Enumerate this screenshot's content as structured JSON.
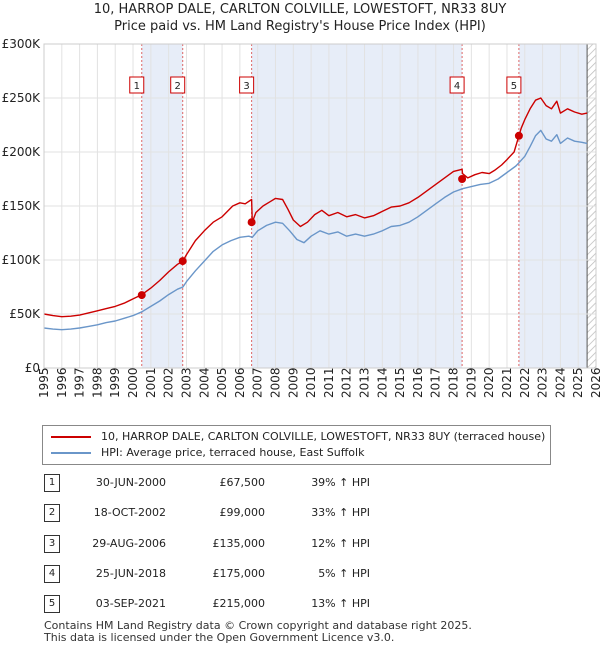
{
  "chart_data": {
    "type": "line",
    "title": "10, HARROP DALE, CARLTON COLVILLE, LOWESTOFT, NR33 8UY",
    "subtitle": "Price paid vs. HM Land Registry's House Price Index (HPI)",
    "xlim": [
      1995,
      2026
    ],
    "ylim": [
      0,
      300000
    ],
    "x_ticks": [
      1995,
      1996,
      1997,
      1998,
      1999,
      2000,
      2001,
      2002,
      2003,
      2004,
      2005,
      2006,
      2007,
      2008,
      2009,
      2010,
      2011,
      2012,
      2013,
      2014,
      2015,
      2016,
      2017,
      2018,
      2019,
      2020,
      2021,
      2022,
      2023,
      2024,
      2025,
      2026
    ],
    "y_ticks": [
      {
        "value": 0,
        "label": "£0"
      },
      {
        "value": 50000,
        "label": "£50K"
      },
      {
        "value": 100000,
        "label": "£100K"
      },
      {
        "value": 150000,
        "label": "£150K"
      },
      {
        "value": 200000,
        "label": "£200K"
      },
      {
        "value": 250000,
        "label": "£250K"
      },
      {
        "value": 300000,
        "label": "£300K"
      }
    ],
    "series": [
      {
        "name": "10, HARROP DALE, CARLTON COLVILLE, LOWESTOFT, NR33 8UY (terraced house)",
        "color": "#cc0000",
        "points": [
          [
            1995.0,
            50000
          ],
          [
            1995.5,
            48500
          ],
          [
            1996.0,
            47500
          ],
          [
            1996.5,
            48000
          ],
          [
            1997.0,
            49000
          ],
          [
            1997.5,
            51000
          ],
          [
            1998.0,
            53000
          ],
          [
            1998.5,
            55000
          ],
          [
            1999.0,
            57000
          ],
          [
            1999.5,
            60000
          ],
          [
            2000.0,
            64000
          ],
          [
            2000.5,
            68000
          ],
          [
            2001.0,
            74000
          ],
          [
            2001.5,
            81000
          ],
          [
            2002.0,
            89000
          ],
          [
            2002.5,
            96000
          ],
          [
            2002.8,
            99000
          ],
          [
            2003.0,
            105000
          ],
          [
            2003.5,
            118000
          ],
          [
            2004.0,
            127000
          ],
          [
            2004.5,
            135000
          ],
          [
            2005.0,
            140000
          ],
          [
            2005.3,
            145000
          ],
          [
            2005.6,
            150000
          ],
          [
            2006.0,
            153000
          ],
          [
            2006.3,
            152000
          ],
          [
            2006.66,
            156000
          ],
          [
            2006.7,
            135000
          ],
          [
            2006.9,
            144000
          ],
          [
            2007.3,
            150000
          ],
          [
            2007.7,
            154000
          ],
          [
            2008.0,
            157000
          ],
          [
            2008.4,
            156000
          ],
          [
            2008.7,
            147000
          ],
          [
            2009.0,
            137000
          ],
          [
            2009.4,
            131000
          ],
          [
            2009.8,
            135000
          ],
          [
            2010.2,
            142000
          ],
          [
            2010.6,
            146000
          ],
          [
            2011.0,
            141000
          ],
          [
            2011.5,
            144000
          ],
          [
            2012.0,
            140000
          ],
          [
            2012.5,
            142000
          ],
          [
            2013.0,
            139000
          ],
          [
            2013.5,
            141000
          ],
          [
            2014.0,
            145000
          ],
          [
            2014.5,
            149000
          ],
          [
            2015.0,
            150000
          ],
          [
            2015.5,
            153000
          ],
          [
            2016.0,
            158000
          ],
          [
            2016.5,
            164000
          ],
          [
            2017.0,
            170000
          ],
          [
            2017.5,
            176000
          ],
          [
            2018.0,
            182000
          ],
          [
            2018.48,
            184000
          ],
          [
            2018.5,
            180000
          ],
          [
            2018.8,
            176000
          ],
          [
            2019.2,
            179000
          ],
          [
            2019.6,
            181000
          ],
          [
            2020.0,
            180000
          ],
          [
            2020.3,
            183000
          ],
          [
            2020.7,
            188000
          ],
          [
            2021.0,
            193000
          ],
          [
            2021.4,
            200000
          ],
          [
            2021.67,
            215000
          ],
          [
            2021.8,
            222000
          ],
          [
            2022.0,
            230000
          ],
          [
            2022.3,
            240000
          ],
          [
            2022.6,
            248000
          ],
          [
            2022.9,
            250000
          ],
          [
            2023.2,
            243000
          ],
          [
            2023.5,
            240000
          ],
          [
            2023.8,
            247000
          ],
          [
            2024.0,
            236000
          ],
          [
            2024.4,
            240000
          ],
          [
            2024.8,
            237000
          ],
          [
            2025.2,
            235000
          ],
          [
            2025.5,
            236000
          ]
        ]
      },
      {
        "name": "HPI: Average price, terraced house, East Suffolk",
        "color": "#6a96c9",
        "points": [
          [
            1995.0,
            37000
          ],
          [
            1995.5,
            36000
          ],
          [
            1996.0,
            35500
          ],
          [
            1996.5,
            36000
          ],
          [
            1997.0,
            37000
          ],
          [
            1997.5,
            38500
          ],
          [
            1998.0,
            40000
          ],
          [
            1998.5,
            42000
          ],
          [
            1999.0,
            43500
          ],
          [
            1999.5,
            46000
          ],
          [
            2000.0,
            48500
          ],
          [
            2000.5,
            52000
          ],
          [
            2001.0,
            57000
          ],
          [
            2001.5,
            62000
          ],
          [
            2002.0,
            68000
          ],
          [
            2002.5,
            73000
          ],
          [
            2002.8,
            75000
          ],
          [
            2003.0,
            80000
          ],
          [
            2003.5,
            90000
          ],
          [
            2004.0,
            99000
          ],
          [
            2004.5,
            108000
          ],
          [
            2005.0,
            114000
          ],
          [
            2005.5,
            118000
          ],
          [
            2006.0,
            121000
          ],
          [
            2006.5,
            122000
          ],
          [
            2006.7,
            121000
          ],
          [
            2007.0,
            127000
          ],
          [
            2007.5,
            132000
          ],
          [
            2008.0,
            135000
          ],
          [
            2008.4,
            134000
          ],
          [
            2008.8,
            127000
          ],
          [
            2009.2,
            119000
          ],
          [
            2009.6,
            116000
          ],
          [
            2010.0,
            122000
          ],
          [
            2010.5,
            127000
          ],
          [
            2011.0,
            124000
          ],
          [
            2011.5,
            126000
          ],
          [
            2012.0,
            122000
          ],
          [
            2012.5,
            124000
          ],
          [
            2013.0,
            122000
          ],
          [
            2013.5,
            124000
          ],
          [
            2014.0,
            127000
          ],
          [
            2014.5,
            131000
          ],
          [
            2015.0,
            132000
          ],
          [
            2015.5,
            135000
          ],
          [
            2016.0,
            140000
          ],
          [
            2016.5,
            146000
          ],
          [
            2017.0,
            152000
          ],
          [
            2017.5,
            158000
          ],
          [
            2018.0,
            163000
          ],
          [
            2018.5,
            166000
          ],
          [
            2019.0,
            168000
          ],
          [
            2019.5,
            170000
          ],
          [
            2020.0,
            171000
          ],
          [
            2020.5,
            175000
          ],
          [
            2021.0,
            181000
          ],
          [
            2021.5,
            187000
          ],
          [
            2021.67,
            190000
          ],
          [
            2022.0,
            196000
          ],
          [
            2022.3,
            205000
          ],
          [
            2022.6,
            215000
          ],
          [
            2022.9,
            220000
          ],
          [
            2023.2,
            212000
          ],
          [
            2023.5,
            210000
          ],
          [
            2023.8,
            216000
          ],
          [
            2024.0,
            208000
          ],
          [
            2024.4,
            213000
          ],
          [
            2024.8,
            210000
          ],
          [
            2025.2,
            209000
          ],
          [
            2025.5,
            208000
          ]
        ]
      }
    ],
    "transactions": [
      {
        "id": "1",
        "x": 2000.49,
        "price": 67500
      },
      {
        "id": "2",
        "x": 2002.79,
        "price": 99000
      },
      {
        "id": "3",
        "x": 2006.66,
        "price": 135000
      },
      {
        "id": "4",
        "x": 2018.48,
        "price": 175000
      },
      {
        "id": "5",
        "x": 2021.67,
        "price": 215000
      }
    ],
    "forecast_start": 2025.5
  },
  "legend": {
    "property_label": "10, HARROP DALE, CARLTON COLVILLE, LOWESTOFT, NR33 8UY (terraced house)",
    "hpi_label": "HPI: Average price, terraced house, East Suffolk",
    "property_color": "#cc0000",
    "hpi_color": "#6a96c9"
  },
  "table": [
    {
      "num": "1",
      "date": "30-JUN-2000",
      "price": "£67,500",
      "hpi": "39% ↑ HPI"
    },
    {
      "num": "2",
      "date": "18-OCT-2002",
      "price": "£99,000",
      "hpi": "33% ↑ HPI"
    },
    {
      "num": "3",
      "date": "29-AUG-2006",
      "price": "£135,000",
      "hpi": "12% ↑ HPI"
    },
    {
      "num": "4",
      "date": "25-JUN-2018",
      "price": "£175,000",
      "hpi": "5% ↑ HPI"
    },
    {
      "num": "5",
      "date": "03-SEP-2021",
      "price": "£215,000",
      "hpi": "13% ↑ HPI"
    }
  ],
  "footer": {
    "line1": "Contains HM Land Registry data © Crown copyright and database right 2025.",
    "line2": "This data is licensed under the Open Government Licence v3.0."
  }
}
